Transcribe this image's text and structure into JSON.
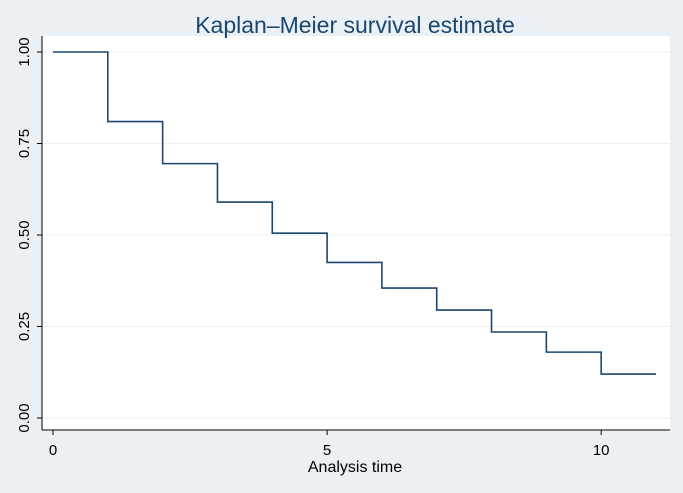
{
  "chart_data": {
    "type": "line",
    "step": true,
    "title": "Kaplan–Meier survival estimate",
    "xlabel": "Analysis time",
    "ylabel": "",
    "xlim": [
      0,
      11
    ],
    "ylim": [
      0,
      1
    ],
    "xticks": [
      0,
      5,
      10
    ],
    "xtick_labels": [
      "0",
      "5",
      "10"
    ],
    "yticks": [
      0,
      0.25,
      0.5,
      0.75,
      1.0
    ],
    "ytick_labels": [
      "0.00",
      "0.25",
      "0.50",
      "0.75",
      "1.00"
    ],
    "grid": true,
    "legend": "none",
    "series": [
      {
        "x": [
          0,
          1,
          2,
          3,
          4,
          5,
          6,
          7,
          8,
          9,
          10,
          11
        ],
        "y": [
          1.0,
          0.81,
          0.695,
          0.59,
          0.505,
          0.425,
          0.355,
          0.295,
          0.235,
          0.18,
          0.12,
          0.12
        ]
      }
    ]
  },
  "colors": {
    "background": "#ebf0f5",
    "plot_background": "#ffffff",
    "title": "#1a476f",
    "line": "#1a476f",
    "grid": "#eaf2f3"
  }
}
